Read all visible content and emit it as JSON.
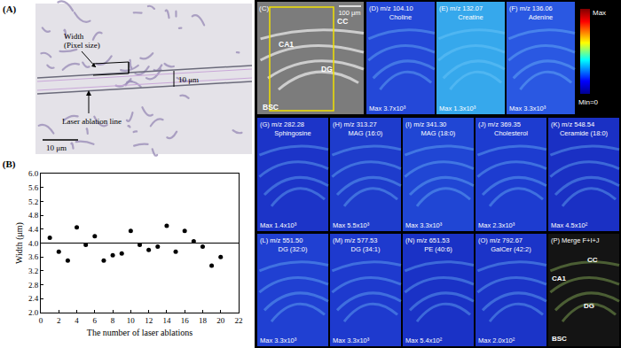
{
  "figure": {
    "panel_a": {
      "label": "(A)",
      "width_text": [
        "Width",
        "(Pixel size)"
      ],
      "line_gap": "10 μm",
      "ablation_text": "Laser ablation line",
      "scale_bar": "10 μm"
    },
    "panel_c": {
      "optical": {
        "label": "(C)",
        "scale_bar": "100 μm",
        "regions": [
          "CC",
          "CA1",
          "DG",
          "BSC"
        ]
      },
      "colorbar": {
        "top": "Max",
        "bottom": "Min=0"
      },
      "row1": [
        {
          "title": "(D) m/z 104.10",
          "name": "Choline",
          "max": "Max 3.7x10³",
          "color": "#2448d8"
        },
        {
          "title": "(E) m/z 132.07",
          "name": "Creatine",
          "max": "Max 1.3x10³",
          "color": "#36a8ec"
        },
        {
          "title": "(F) m/z 136.06",
          "name": "Adenine",
          "max": "Max 3.3x10³",
          "color": "#2a58e2"
        }
      ],
      "row2": [
        {
          "title": "(G) m/z 282.28",
          "name": "Sphingosine",
          "max": "Max 1.4x10³",
          "color": "#1c34c8"
        },
        {
          "title": "(H) m/z 313.27",
          "name": "MAG (16:0)",
          "max": "Max 5.5x10³",
          "color": "#1e3ccc"
        },
        {
          "title": "(I) m/z 341.30",
          "name": "MAG (18:0)",
          "max": "Max 3.3x10³",
          "color": "#2046d4"
        },
        {
          "title": "(J) m/z 369.35",
          "name": "Cholesterol",
          "max": "Max 2.3x10³",
          "color": "#1d3cd0"
        },
        {
          "title": "(K) m/z 548.54",
          "name": "Ceramide (18:0)",
          "max": "Max 4.5x10²",
          "color": "#1a30c4"
        }
      ],
      "row3": [
        {
          "title": "(L) m/z 551.50",
          "name": "DG (32:0)",
          "max": "Max 3.3x10³",
          "color": "#2040d2"
        },
        {
          "title": "(M) m/z 577.53",
          "name": "DG (34:1)",
          "max": "Max 3.3x10³",
          "color": "#1e3ace"
        },
        {
          "title": "(N) m/z 651.53",
          "name": "PE (40:6)",
          "max": "Max 5.4x10²",
          "color": "#1a32c6"
        },
        {
          "title": "(O) m/z 792.67",
          "name": "GalCer (42:2)",
          "max": "Max 2.0x10²",
          "color": "#1b34c8"
        }
      ],
      "merge": {
        "title": "(P) Merge F+I+J",
        "regions": [
          "CC",
          "CA1",
          "DG",
          "BSC"
        ]
      }
    }
  },
  "chart_data": {
    "type": "scatter",
    "title": "(B)",
    "x_label": "The number of laser ablations",
    "y_label": "Width (μm)",
    "x": [
      1,
      2,
      3,
      4,
      5,
      6,
      7,
      8,
      9,
      10,
      11,
      12,
      13,
      14,
      15,
      16,
      17,
      18,
      19,
      20
    ],
    "values": [
      4.15,
      3.75,
      3.5,
      4.45,
      3.95,
      4.2,
      3.5,
      3.65,
      3.7,
      4.35,
      3.95,
      3.8,
      3.9,
      4.5,
      3.75,
      4.35,
      4.05,
      3.9,
      3.35,
      3.6
    ],
    "reference_line": 4.0,
    "color": "#000000",
    "marker": "circle",
    "grid": false,
    "xlim": [
      0,
      22
    ],
    "xticks": [
      0,
      2,
      4,
      6,
      8,
      10,
      12,
      14,
      16,
      18,
      20,
      22
    ],
    "ylim": [
      2.0,
      6.0
    ],
    "yticks": [
      {
        "value": 2.0,
        "label": "2.0"
      },
      2.4,
      2.8,
      3.2,
      3.6,
      {
        "value": 4.0,
        "label": "4.0"
      },
      4.4,
      4.8,
      5.2,
      5.6,
      {
        "value": 6.0,
        "label": "6.0"
      }
    ]
  }
}
